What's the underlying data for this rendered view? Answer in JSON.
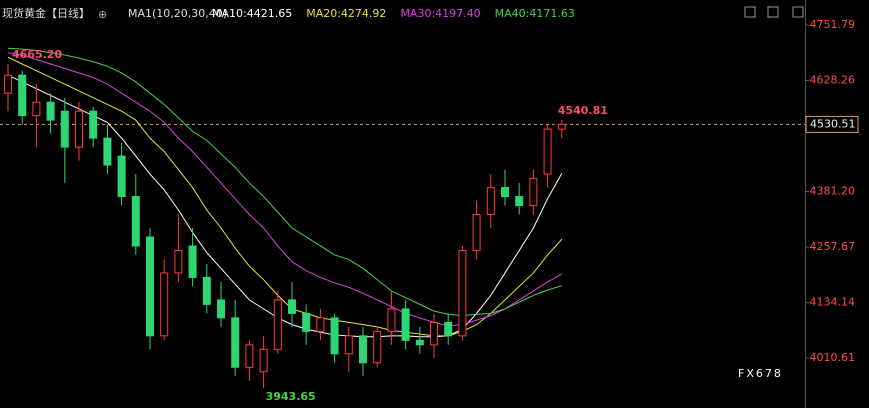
{
  "chart_data": {
    "type": "candlestick",
    "title": "现货黄金【日线】",
    "indicator": "MA1(10,20,30,40)",
    "open": [
      4600,
      4640,
      4550,
      4580,
      4560,
      4480,
      4560,
      4500,
      4460,
      4370,
      4280,
      4060,
      4200,
      4260,
      4190,
      4140,
      4100,
      3990,
      3980,
      4030,
      4140,
      4110,
      4070,
      4100,
      4020,
      4060,
      4000,
      4070,
      4120,
      4050,
      4040,
      4090,
      4060,
      4250,
      4330,
      4390,
      4370,
      4350,
      4420,
      4520
    ],
    "high": [
      4665.2,
      4650,
      4620,
      4600,
      4590,
      4580,
      4570,
      4530,
      4490,
      4420,
      4300,
      4230,
      4330,
      4300,
      4220,
      4180,
      4140,
      4050,
      4060,
      4160,
      4180,
      4130,
      4120,
      4110,
      4080,
      4080,
      4080,
      4160,
      4140,
      4080,
      4110,
      4110,
      4260,
      4360,
      4420,
      4430,
      4400,
      4430,
      4530,
      4540.81
    ],
    "low": [
      4560,
      4530,
      4480,
      4510,
      4400,
      4450,
      4480,
      4420,
      4350,
      4240,
      4030,
      4050,
      4180,
      4170,
      4110,
      4080,
      3970,
      3960,
      3943.65,
      4020,
      4080,
      4040,
      4050,
      4000,
      3980,
      3970,
      3990,
      4040,
      4030,
      4020,
      4010,
      4040,
      4050,
      4230,
      4300,
      4350,
      4330,
      4330,
      4390,
      4500
    ],
    "close": [
      4640,
      4550,
      4580,
      4540,
      4480,
      4560,
      4500,
      4440,
      4370,
      4260,
      4060,
      4200,
      4250,
      4190,
      4130,
      4100,
      3990,
      4040,
      4030,
      4140,
      4110,
      4070,
      4100,
      4020,
      4060,
      4000,
      4070,
      4120,
      4050,
      4040,
      4090,
      4060,
      4250,
      4330,
      4390,
      4370,
      4350,
      4410,
      4520,
      4530.51
    ],
    "up_color": "#ff3b3b",
    "down_color": "#2ed573",
    "series": [
      {
        "name": "MA10:4421.65",
        "color": "#ffffff",
        "values": [
          4640,
          4625,
          4610,
          4595,
          4580,
          4565,
          4550,
          4535,
          4500,
          4460,
          4420,
          4385,
          4340,
          4290,
          4245,
          4210,
          4175,
          4140,
          4120,
          4100,
          4085,
          4075,
          4068,
          4062,
          4060,
          4058,
          4058,
          4060,
          4060,
          4058,
          4058,
          4060,
          4075,
          4110,
          4150,
          4200,
          4250,
          4300,
          4365,
          4421.65
        ]
      },
      {
        "name": "MA20:4274.92",
        "color": "#e6e632",
        "values": [
          4680,
          4665,
          4650,
          4635,
          4620,
          4605,
          4590,
          4575,
          4560,
          4540,
          4500,
          4470,
          4430,
          4390,
          4340,
          4300,
          4255,
          4215,
          4185,
          4150,
          4120,
          4110,
          4100,
          4095,
          4090,
          4085,
          4080,
          4072,
          4068,
          4064,
          4060,
          4060,
          4070,
          4085,
          4110,
          4140,
          4170,
          4200,
          4240,
          4274.92
        ]
      },
      {
        "name": "MA30:4197.40",
        "color": "#e040e0",
        "values": [
          4690,
          4685,
          4675,
          4665,
          4655,
          4645,
          4635,
          4620,
          4600,
          4580,
          4560,
          4535,
          4500,
          4470,
          4435,
          4400,
          4365,
          4330,
          4300,
          4260,
          4225,
          4205,
          4190,
          4178,
          4168,
          4155,
          4140,
          4125,
          4110,
          4100,
          4090,
          4082,
          4085,
          4095,
          4105,
          4120,
          4140,
          4160,
          4180,
          4197.4
        ]
      },
      {
        "name": "MA40:4171.63",
        "color": "#44d444",
        "values": [
          4700,
          4698,
          4695,
          4690,
          4685,
          4678,
          4670,
          4660,
          4645,
          4625,
          4600,
          4575,
          4545,
          4515,
          4495,
          4465,
          4435,
          4400,
          4370,
          4335,
          4300,
          4280,
          4260,
          4240,
          4230,
          4210,
          4185,
          4160,
          4145,
          4130,
          4115,
          4108,
          4105,
          4108,
          4110,
          4120,
          4135,
          4150,
          4162,
          4171.63
        ]
      }
    ],
    "ylim": [
      3899.4,
      4807.4
    ],
    "yticks": [
      4751.79,
      4628.26,
      {
        "value": 4381.2,
        "label": "4381.20"
      },
      4257.67,
      4134.14,
      4010.61
    ],
    "annotations": [
      {
        "value": 4665.2,
        "label": "4665.20",
        "color": "#ff4d6a"
      },
      {
        "value": 3943.65,
        "label": "3943.65",
        "color": "#44d444"
      },
      {
        "value": 4540.81,
        "label": "4540.81",
        "color": "#ff4d6a"
      }
    ],
    "last_price": {
      "value": 4530.51,
      "label": "4530.51"
    },
    "watermark": "FX678"
  }
}
